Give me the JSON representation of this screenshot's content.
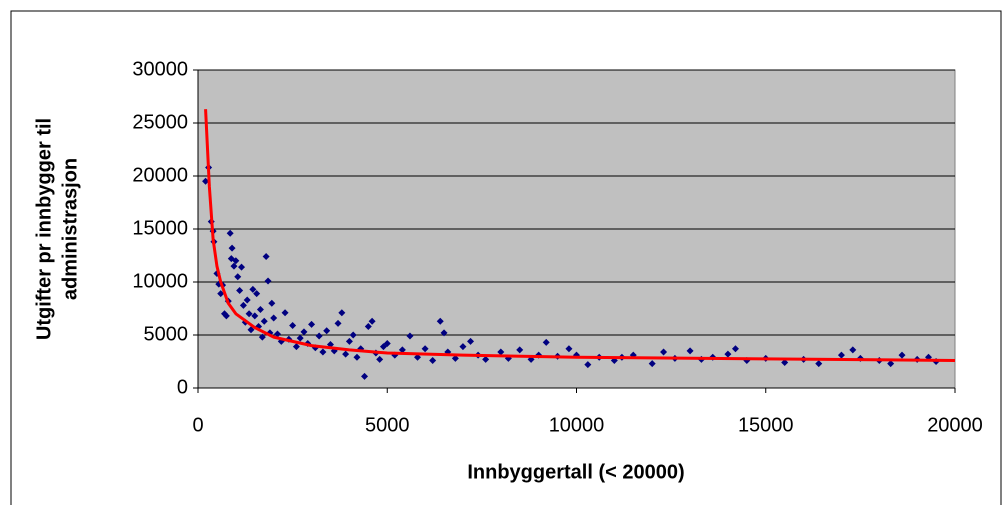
{
  "chart_data": {
    "type": "scatter",
    "xlabel": "Innbyggertall (< 20000)",
    "ylabel": [
      "Utgifter pr innbygger til",
      "administrasjon"
    ],
    "xlim": [
      0,
      20000
    ],
    "ylim": [
      0,
      30000
    ],
    "xticks": [
      0,
      5000,
      10000,
      15000,
      20000
    ],
    "yticks": [
      0,
      5000,
      10000,
      15000,
      20000,
      25000,
      30000
    ],
    "grid": true,
    "series": [
      {
        "type": "scatter",
        "marker": "diamond",
        "color": "#000080",
        "x": [
          200,
          280,
          350,
          400,
          420,
          500,
          550,
          600,
          650,
          700,
          750,
          800,
          850,
          880,
          900,
          950,
          1000,
          1050,
          1100,
          1150,
          1200,
          1250,
          1300,
          1350,
          1400,
          1450,
          1500,
          1550,
          1600,
          1650,
          1700,
          1750,
          1800,
          1850,
          1900,
          1950,
          2000,
          2100,
          2200,
          2300,
          2400,
          2500,
          2600,
          2700,
          2800,
          2900,
          3000,
          3100,
          3200,
          3300,
          3400,
          3500,
          3600,
          3700,
          3800,
          3900,
          4000,
          4100,
          4200,
          4300,
          4400,
          4500,
          4600,
          4700,
          4800,
          4900,
          5000,
          5200,
          5400,
          5600,
          5800,
          6000,
          6200,
          6400,
          6500,
          6600,
          6800,
          7000,
          7200,
          7400,
          7600,
          8000,
          8200,
          8500,
          8800,
          9000,
          9200,
          9500,
          9800,
          10000,
          10300,
          10600,
          11000,
          11200,
          11500,
          12000,
          12300,
          12600,
          13000,
          13300,
          13600,
          14000,
          14200,
          14500,
          15000,
          15500,
          16000,
          16400,
          17000,
          17300,
          17500,
          18000,
          18300,
          18600,
          19000,
          19300,
          19500
        ],
        "values": [
          19500,
          20800,
          15700,
          14800,
          13800,
          10800,
          9800,
          8900,
          9700,
          7000,
          6800,
          8200,
          14600,
          12200,
          13200,
          11500,
          12000,
          10500,
          9200,
          11400,
          7800,
          6200,
          8300,
          7000,
          5500,
          9300,
          6800,
          8900,
          5800,
          7400,
          4800,
          6300,
          12400,
          10100,
          5200,
          8000,
          6600,
          5100,
          4400,
          7100,
          4600,
          5900,
          3900,
          4700,
          5300,
          4200,
          6000,
          3800,
          4900,
          3400,
          5400,
          4100,
          3500,
          6100,
          7100,
          3200,
          4400,
          5000,
          2900,
          3700,
          1100,
          5800,
          6300,
          3300,
          2700,
          3900,
          4200,
          3100,
          3600,
          4900,
          2900,
          3700,
          2600,
          6300,
          5200,
          3400,
          2800,
          3900,
          4400,
          3100,
          2700,
          3400,
          2800,
          3600,
          2700,
          3100,
          4300,
          3000,
          3700,
          3100,
          2200,
          2900,
          2600,
          2900,
          3100,
          2300,
          3400,
          2800,
          3500,
          2700,
          2900,
          3200,
          3700,
          2600,
          2800,
          2400,
          2700,
          2300,
          3100,
          3600,
          2800,
          2600,
          2300,
          3100,
          2700,
          2900,
          2500
        ]
      },
      {
        "type": "line",
        "color": "#ff0000",
        "x": [
          200,
          300,
          400,
          500,
          600,
          800,
          1000,
          1500,
          2000,
          3000,
          4000,
          5000,
          7000,
          10000,
          15000,
          20000
        ],
        "values": [
          26300,
          19000,
          14000,
          11500,
          10000,
          8000,
          7000,
          5700,
          4800,
          4000,
          3600,
          3300,
          3100,
          2900,
          2750,
          2600
        ]
      }
    ]
  }
}
